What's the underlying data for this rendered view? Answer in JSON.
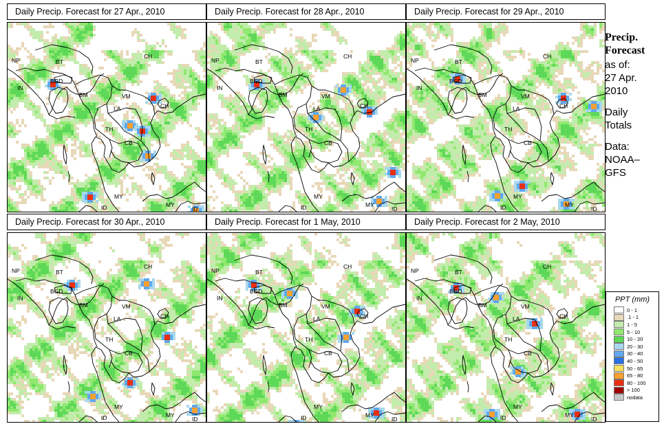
{
  "panels": [
    {
      "title": "Daily Precip. Forecast for  27 Apr., 2010",
      "date": "27 Apr., 2010"
    },
    {
      "title": "Daily Precip. Forecast for  28 Apr., 2010",
      "date": "28 Apr., 2010"
    },
    {
      "title": "Daily Precip. Forecast for  29 Apr., 2010",
      "date": "29 Apr., 2010"
    },
    {
      "title": "Daily Precip. Forecast for  30 Apr., 2010",
      "date": "30 Apr., 2010"
    },
    {
      "title": "Daily Precip. Forecast for  1 May, 2010",
      "date": "1 May, 2010"
    },
    {
      "title": "Daily Precip. Forecast for  2 May, 2010",
      "date": "2 May, 2010"
    }
  ],
  "country_labels": [
    "NP",
    "BT",
    "BGD",
    "IN",
    "CH",
    "BM",
    "VM",
    "LA",
    "TH",
    "CB",
    "CH",
    "MY",
    "MY",
    "ID",
    "ID"
  ],
  "sidebar": {
    "heading_line1": "Precip.",
    "heading_line2": "Forecast",
    "asof_line1": "as of:",
    "asof_line2": "27 Apr.",
    "asof_line3": "2010",
    "totals_line1": "Daily",
    "totals_line2": "Totals",
    "data_line1": "Data:",
    "data_line2": "NOAA–",
    "data_line3": "GFS"
  },
  "legend": {
    "title": "PPT (mm)",
    "items": [
      {
        "label": "0 - 1",
        "color": "#ffffff"
      },
      {
        "label": ".1 - 1",
        "color": "#e8d8b8"
      },
      {
        "label": "1 - 5",
        "color": "#c2ecac"
      },
      {
        "label": "5 - 10",
        "color": "#90e870"
      },
      {
        "label": "10 - 20",
        "color": "#5ed858"
      },
      {
        "label": "20 - 30",
        "color": "#a8d8ee"
      },
      {
        "label": "30 - 40",
        "color": "#60a8ec"
      },
      {
        "label": "40 - 50",
        "color": "#2870e8"
      },
      {
        "label": "50 - 65",
        "color": "#f8e060"
      },
      {
        "label": "65 - 80",
        "color": "#f8a030"
      },
      {
        "label": "80 - 100",
        "color": "#e83010"
      },
      {
        "label": "> 100",
        "color": "#a00000"
      },
      {
        "label": "nodata",
        "color": "#c8c8c8"
      }
    ]
  }
}
